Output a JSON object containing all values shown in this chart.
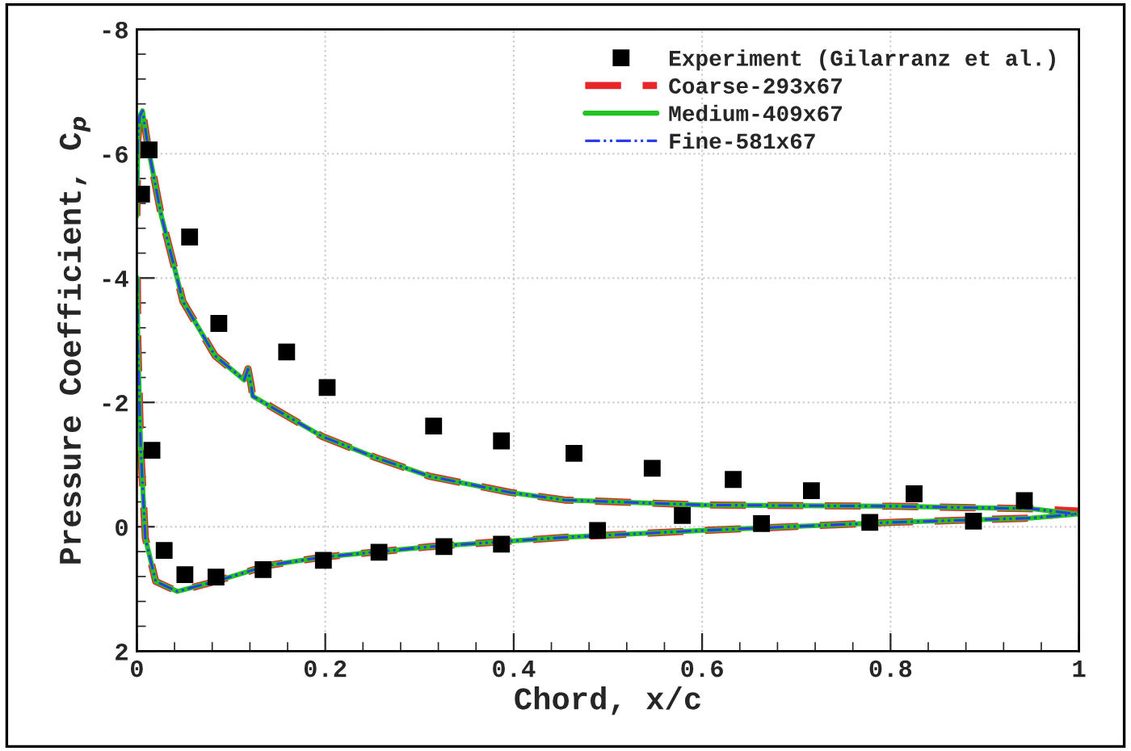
{
  "chart_data": {
    "type": "line",
    "xlabel": "Chord, x/c",
    "ylabel": "Pressure Coefficient, C$_{p}$",
    "xlim": [
      0,
      1
    ],
    "ylim": [
      2,
      -8
    ],
    "xticks": [
      0,
      0.2,
      0.4,
      0.6,
      0.8,
      1
    ],
    "yticks": [
      2,
      0,
      -2,
      -4,
      -6,
      -8
    ],
    "grid": true,
    "legend": "top right",
    "series": [
      {
        "name": "Experiment (Gilarranz et al.)",
        "type": "scatter",
        "marker": "square",
        "color": "#000000",
        "x": [
          0.005,
          0.013,
          0.016,
          0.029,
          0.051,
          0.056,
          0.084,
          0.087,
          0.134,
          0.159,
          0.198,
          0.202,
          0.257,
          0.315,
          0.326,
          0.387,
          0.387,
          0.464,
          0.489,
          0.547,
          0.579,
          0.633,
          0.663,
          0.716,
          0.778,
          0.825,
          0.888,
          0.942
        ],
        "values": [
          -5.35,
          -6.06,
          -1.23,
          0.38,
          0.77,
          -4.66,
          0.81,
          -3.27,
          0.69,
          -2.81,
          0.54,
          -2.24,
          0.41,
          -1.62,
          0.32,
          -1.38,
          0.28,
          -1.18,
          0.06,
          -0.94,
          -0.18,
          -0.76,
          -0.05,
          -0.58,
          -0.07,
          -0.53,
          -0.09,
          -0.42
        ]
      },
      {
        "name": "Coarse-293x67",
        "line_style": "dashed",
        "color": "#e8262a",
        "x": [
          0.0,
          0.001,
          0.003,
          0.006,
          0.012,
          0.026,
          0.049,
          0.083,
          0.114,
          0.118,
          0.121,
          0.123,
          0.197,
          0.254,
          0.311,
          0.397,
          0.454,
          0.6,
          0.8,
          0.95,
          1.0
        ],
        "values": [
          -5.0,
          -6.2,
          -6.6,
          -6.69,
          -6.1,
          -5.0,
          -3.62,
          -2.75,
          -2.36,
          -2.54,
          -2.3,
          -2.1,
          -1.45,
          -1.11,
          -0.81,
          -0.55,
          -0.43,
          -0.35,
          -0.33,
          -0.29,
          -0.25
        ]
      },
      {
        "line_style": "dashed",
        "color": "#e8262a",
        "x": [
          0.0005,
          0.001,
          0.004,
          0.009,
          0.02,
          0.043,
          0.083,
          0.14,
          0.197,
          0.311,
          0.454,
          0.6,
          0.8,
          0.95,
          0.995
        ],
        "values": [
          -4.0,
          -3.0,
          -1.3,
          0.18,
          0.88,
          1.04,
          0.88,
          0.62,
          0.49,
          0.32,
          0.17,
          0.06,
          -0.07,
          -0.14,
          -0.24
        ]
      },
      {
        "name": "Medium-409x67",
        "line_style": "solid",
        "color": "#22c422",
        "x": [
          0.0,
          0.001,
          0.003,
          0.006,
          0.012,
          0.026,
          0.049,
          0.083,
          0.114,
          0.118,
          0.121,
          0.123,
          0.197,
          0.254,
          0.311,
          0.397,
          0.454,
          0.6,
          0.8,
          0.95,
          1.0
        ],
        "values": [
          -5.0,
          -6.2,
          -6.6,
          -6.69,
          -6.1,
          -5.0,
          -3.62,
          -2.75,
          -2.36,
          -2.54,
          -2.3,
          -2.1,
          -1.45,
          -1.11,
          -0.81,
          -0.55,
          -0.43,
          -0.35,
          -0.33,
          -0.29,
          -0.2
        ]
      },
      {
        "line_style": "solid",
        "color": "#22c422",
        "x": [
          0.0005,
          0.001,
          0.004,
          0.009,
          0.02,
          0.043,
          0.083,
          0.14,
          0.197,
          0.311,
          0.454,
          0.6,
          0.8,
          0.95,
          0.995
        ],
        "values": [
          -4.0,
          -3.0,
          -1.3,
          0.18,
          0.88,
          1.04,
          0.88,
          0.62,
          0.49,
          0.32,
          0.17,
          0.06,
          -0.07,
          -0.14,
          -0.2
        ]
      },
      {
        "name": "Fine-581x67",
        "line_style": "dashdot",
        "color": "#2b3de8",
        "x": [
          0.0,
          0.001,
          0.003,
          0.006,
          0.012,
          0.026,
          0.049,
          0.083,
          0.114,
          0.118,
          0.121,
          0.123,
          0.197,
          0.254,
          0.311,
          0.397,
          0.454,
          0.6,
          0.8,
          0.95,
          1.0
        ],
        "values": [
          -5.0,
          -6.2,
          -6.6,
          -6.69,
          -6.1,
          -5.0,
          -3.62,
          -2.75,
          -2.36,
          -2.54,
          -2.3,
          -2.1,
          -1.45,
          -1.11,
          -0.81,
          -0.55,
          -0.43,
          -0.35,
          -0.33,
          -0.29,
          -0.2
        ]
      },
      {
        "line_style": "dashdot",
        "color": "#2b3de8",
        "x": [
          0.0005,
          0.001,
          0.004,
          0.009,
          0.02,
          0.043,
          0.083,
          0.14,
          0.197,
          0.311,
          0.454,
          0.6,
          0.8,
          0.95,
          0.995
        ],
        "values": [
          -4.0,
          -3.0,
          -1.3,
          0.18,
          0.88,
          1.04,
          0.88,
          0.62,
          0.49,
          0.32,
          0.17,
          0.06,
          -0.07,
          -0.14,
          -0.2
        ]
      }
    ]
  }
}
